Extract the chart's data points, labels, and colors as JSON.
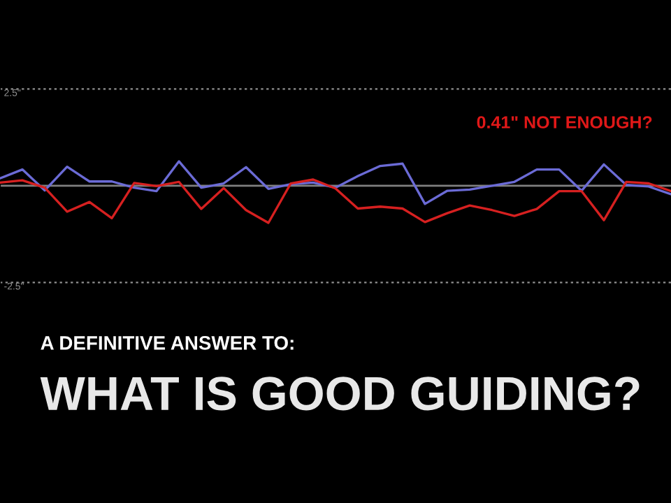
{
  "chart_data": {
    "type": "line",
    "title": "WHAT IS GOOD GUIDING?",
    "subtitle": "A DEFINITIVE ANSWER TO:",
    "annotations": [
      "0.41\" NOT ENOUGH?"
    ],
    "categories": [
      null,
      null,
      null,
      null,
      null,
      null,
      null,
      null,
      null,
      null,
      null,
      null,
      null,
      null,
      null,
      null,
      null,
      null,
      null,
      null,
      null,
      null,
      null,
      null,
      null,
      null,
      null,
      null,
      null,
      null,
      null
    ],
    "series": [
      {
        "color": "#6b6bd6",
        "values": [
          0.19,
          0.42,
          -0.12,
          0.49,
          0.11,
          0.11,
          -0.05,
          -0.14,
          0.63,
          -0.05,
          0.06,
          0.48,
          -0.08,
          0.04,
          0.08,
          -0.05,
          0.25,
          0.51,
          0.57,
          -0.47,
          -0.13,
          -0.1,
          0.0,
          0.1,
          0.42,
          0.42,
          -0.13,
          0.55,
          0.02,
          -0.02,
          -0.22
        ]
      },
      {
        "color": "#d62020",
        "values": [
          0.08,
          0.14,
          -0.05,
          -0.67,
          -0.42,
          -0.84,
          0.07,
          -0.01,
          0.1,
          -0.6,
          -0.06,
          -0.63,
          -0.96,
          0.06,
          0.16,
          -0.07,
          -0.59,
          -0.54,
          -0.59,
          -0.94,
          -0.71,
          -0.51,
          -0.63,
          -0.78,
          -0.6,
          -0.14,
          -0.14,
          -0.89,
          0.1,
          0.06,
          -0.14
        ]
      }
    ],
    "ylim": [
      -8.2,
      4.8
    ],
    "yticks": [
      {
        "value": 2.5,
        "label": "2.5\""
      },
      {
        "value": -2.5,
        "label": "-2.5\""
      }
    ],
    "grid": "y",
    "ref_lines": [
      {
        "axis": "y",
        "value": 0,
        "color": "#808080"
      }
    ],
    "line_style": "solid"
  }
}
